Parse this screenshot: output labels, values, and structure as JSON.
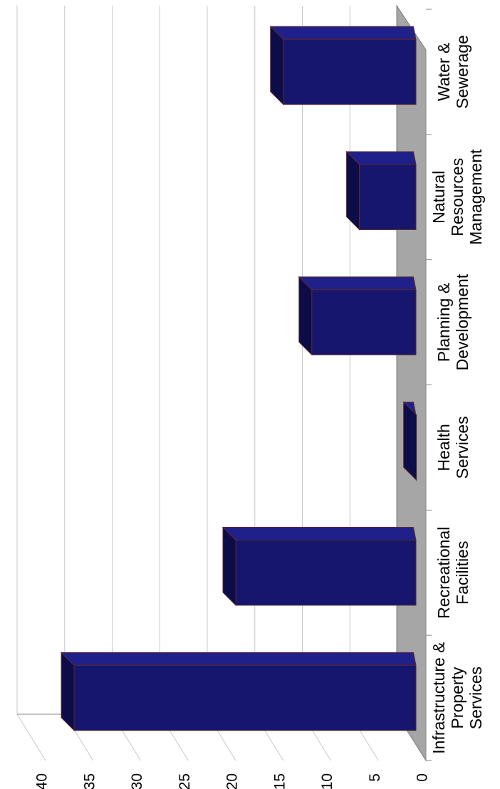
{
  "chart_data": {
    "type": "bar",
    "orientation": "rotated-90-ccw",
    "categories": [
      [
        "Infrastructure &",
        "Property",
        "Services"
      ],
      [
        "Recreational",
        "Facilities"
      ],
      [
        "Health",
        "Services"
      ],
      [
        "Planning &",
        "Development"
      ],
      [
        "Natural",
        "Resources",
        "Management"
      ],
      [
        "Water &",
        "Sewerage"
      ]
    ],
    "values": [
      37,
      20,
      1,
      12,
      7,
      15
    ],
    "title": "",
    "xlabel": "",
    "ylabel": "",
    "ylim": [
      0,
      40
    ],
    "yticks": [
      "0",
      "5",
      "10",
      "15",
      "20",
      "25",
      "30",
      "35",
      "40"
    ],
    "grid": true,
    "legend": "none",
    "colors": {
      "bar_front": "#16166e",
      "bar_top": "#0c0c48",
      "bar_side": "#20208a",
      "bar_edge": "#5a2a2a",
      "floor": "#a6a6a6",
      "gridline": "#c8c8c8",
      "axis": "#8a8a8a"
    }
  }
}
